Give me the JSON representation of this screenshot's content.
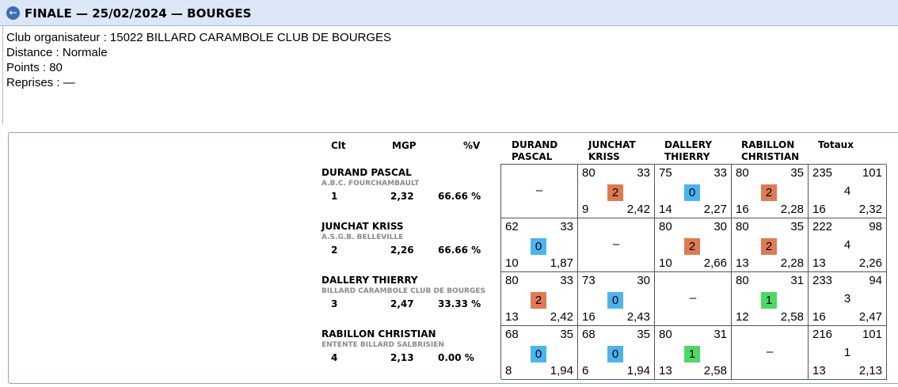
{
  "header": {
    "title": "FINALE — 25/02/2024 — BOURGES"
  },
  "info": {
    "club": "Club organisateur : 15022 BILLARD CARAMBOLE CLUB DE BOURGES",
    "distance": "Distance : Normale",
    "points": "Points : 80",
    "reprises": "Reprises : —"
  },
  "columns": {
    "clt": "Clt",
    "mgp": "MGP",
    "pv": "%V",
    "players": [
      [
        "DURAND",
        "PASCAL"
      ],
      [
        "JUNCHAT",
        "KRISS"
      ],
      [
        "DALLERY",
        "THIERRY"
      ],
      [
        "RABILLON",
        "CHRISTIAN"
      ]
    ],
    "totals": "Totaux"
  },
  "colors": {
    "win": "#e07a52",
    "draw": "#4cb3ef",
    "loss": "#4cd964"
  },
  "rows": [
    {
      "name": "DURAND PASCAL",
      "club": "A.B.C. FOURCHAMBAULT",
      "rank": "1",
      "mgp": "2,32",
      "pct": "66.66 %",
      "cells": [
        null,
        {
          "pts": "80",
          "rep": "33",
          "score": "2",
          "kind": "win",
          "serie": "9",
          "avg": "2,42"
        },
        {
          "pts": "75",
          "rep": "33",
          "score": "0",
          "kind": "draw",
          "serie": "14",
          "avg": "2,27"
        },
        {
          "pts": "80",
          "rep": "35",
          "score": "2",
          "kind": "win",
          "serie": "16",
          "avg": "2,28"
        }
      ],
      "total": {
        "pts": "235",
        "rep": "101",
        "score": "4",
        "serie": "16",
        "avg": "2,32"
      }
    },
    {
      "name": "JUNCHAT KRISS",
      "club": "A.S.G.B. BELLEVILLE",
      "rank": "2",
      "mgp": "2,26",
      "pct": "66.66 %",
      "cells": [
        {
          "pts": "62",
          "rep": "33",
          "score": "0",
          "kind": "draw",
          "serie": "10",
          "avg": "1,87"
        },
        null,
        {
          "pts": "80",
          "rep": "30",
          "score": "2",
          "kind": "win",
          "serie": "10",
          "avg": "2,66"
        },
        {
          "pts": "80",
          "rep": "35",
          "score": "2",
          "kind": "win",
          "serie": "13",
          "avg": "2,28"
        }
      ],
      "total": {
        "pts": "222",
        "rep": "98",
        "score": "4",
        "serie": "13",
        "avg": "2,26"
      }
    },
    {
      "name": "DALLERY THIERRY",
      "club": "BILLARD CARAMBOLE CLUB DE BOURGES",
      "rank": "3",
      "mgp": "2,47",
      "pct": "33.33 %",
      "cells": [
        {
          "pts": "80",
          "rep": "33",
          "score": "2",
          "kind": "win",
          "serie": "13",
          "avg": "2,42"
        },
        {
          "pts": "73",
          "rep": "30",
          "score": "0",
          "kind": "draw",
          "serie": "16",
          "avg": "2,43"
        },
        null,
        {
          "pts": "80",
          "rep": "31",
          "score": "1",
          "kind": "loss",
          "serie": "12",
          "avg": "2,58"
        }
      ],
      "total": {
        "pts": "233",
        "rep": "94",
        "score": "3",
        "serie": "16",
        "avg": "2,47"
      }
    },
    {
      "name": "RABILLON CHRISTIAN",
      "club": "ENTENTE BILLARD SALBRISIEN",
      "rank": "4",
      "mgp": "2,13",
      "pct": "0.00 %",
      "cells": [
        {
          "pts": "68",
          "rep": "35",
          "score": "0",
          "kind": "draw",
          "serie": "8",
          "avg": "1,94"
        },
        {
          "pts": "68",
          "rep": "35",
          "score": "0",
          "kind": "draw",
          "serie": "6",
          "avg": "1,94"
        },
        {
          "pts": "80",
          "rep": "31",
          "score": "1",
          "kind": "loss",
          "serie": "13",
          "avg": "2,58"
        },
        null
      ],
      "total": {
        "pts": "216",
        "rep": "101",
        "score": "1",
        "serie": "13",
        "avg": "2,13"
      }
    }
  ],
  "empty_cell": "–"
}
